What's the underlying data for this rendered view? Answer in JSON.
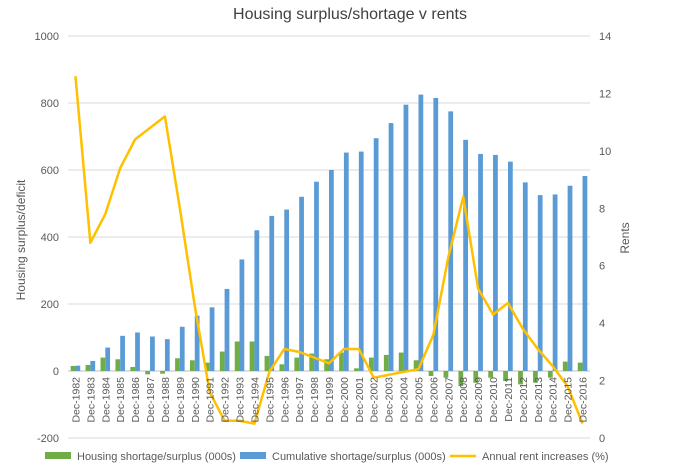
{
  "chart_data": {
    "type": "bar+line",
    "title": "Housing surplus/shortage v rents",
    "ylabel": "Housing surplus/deficit",
    "y2label": "Rents",
    "ylim": [
      -200,
      1000
    ],
    "yticks": [
      -200,
      0,
      200,
      400,
      600,
      800,
      1000
    ],
    "y2lim": [
      0,
      14
    ],
    "y2ticks": [
      0,
      2,
      4,
      6,
      8,
      10,
      12,
      14
    ],
    "grid": true,
    "legend_position": "bottom",
    "categories": [
      "Dec-1982",
      "Dec-1983",
      "Dec-1984",
      "Dec-1985",
      "Dec-1986",
      "Dec-1987",
      "Dec-1988",
      "Dec-1989",
      "Dec-1990",
      "Dec-1991",
      "Dec-1992",
      "Dec-1993",
      "Dec-1994",
      "Dec-1995",
      "Dec-1996",
      "Dec-1997",
      "Dec-1998",
      "Dec-1999",
      "Dec-2000",
      "Dec-2001",
      "Dec-2002",
      "Dec-2003",
      "Dec-2004",
      "Dec-2005",
      "Dec-2006",
      "Dec-2007",
      "Dec-2008",
      "Dec-2009",
      "Dec-2010",
      "Dec-2011",
      "Dec-2012",
      "Dec-2013",
      "Dec-2014",
      "Dec-2015",
      "Dec-2016"
    ],
    "series": [
      {
        "name": "Housing shortage/surplus (000s)",
        "type": "bar",
        "axis": "left",
        "color": "#70ad47",
        "values": [
          15,
          18,
          40,
          35,
          12,
          -10,
          -8,
          38,
          32,
          25,
          58,
          88,
          88,
          45,
          20,
          40,
          52,
          35,
          55,
          8,
          40,
          48,
          55,
          32,
          -15,
          -20,
          -45,
          -35,
          -20,
          -30,
          -40,
          -35,
          -20,
          28,
          25
        ]
      },
      {
        "name": "Cumulative shortage/surplus (000s)",
        "type": "bar",
        "axis": "left",
        "color": "#5b9bd5",
        "values": [
          16,
          30,
          70,
          105,
          115,
          103,
          95,
          132,
          165,
          190,
          245,
          333,
          420,
          463,
          482,
          520,
          565,
          600,
          652,
          655,
          695,
          740,
          795,
          825,
          815,
          775,
          690,
          648,
          645,
          625,
          563,
          525,
          527,
          553,
          582
        ]
      },
      {
        "name": "Annual rent increases (%)",
        "type": "line",
        "axis": "right",
        "color": "#ffc000",
        "values": [
          12.6,
          6.8,
          7.8,
          9.4,
          10.4,
          10.8,
          11.2,
          8.0,
          4.6,
          1.6,
          0.6,
          0.6,
          0.5,
          2.3,
          3.1,
          3.0,
          2.8,
          2.6,
          3.1,
          3.1,
          2.1,
          2.2,
          2.3,
          2.4,
          3.6,
          6.3,
          8.4,
          5.2,
          4.3,
          4.7,
          3.8,
          3.1,
          2.5,
          1.8,
          0.5
        ]
      }
    ]
  }
}
